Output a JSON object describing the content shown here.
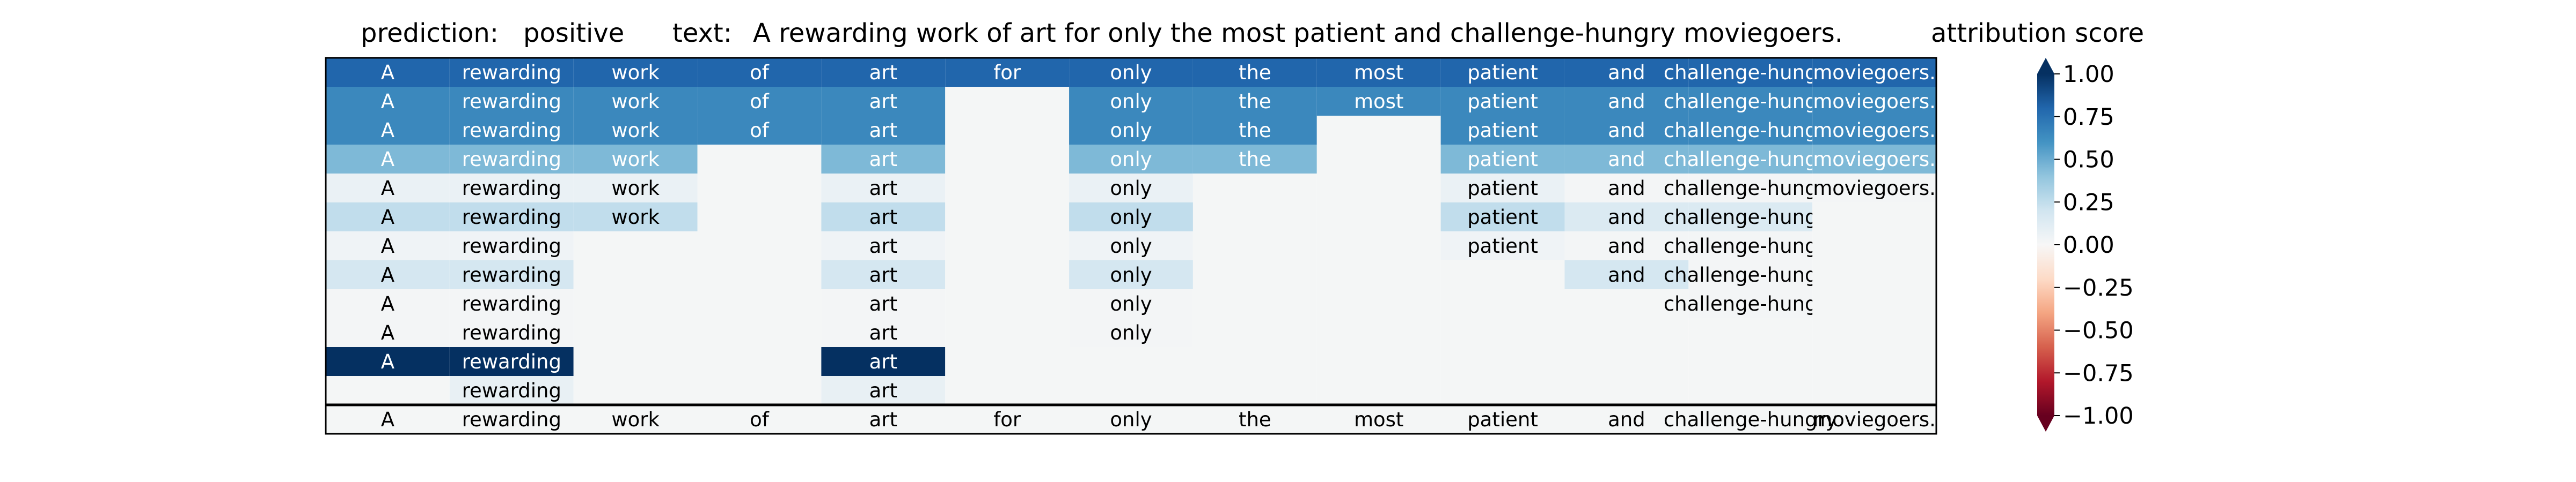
{
  "header": {
    "prediction_label": "prediction:",
    "prediction_value": "positive",
    "text_label": "text:",
    "text_value": "A rewarding work of art for only the most patient and challenge-hungry moviegoers.",
    "score_label": "attribution score"
  },
  "chart_data": {
    "type": "heatmap",
    "tokens": [
      "A",
      "rewarding",
      "work",
      "of",
      "art",
      "for",
      "only",
      "the",
      "most",
      "patient",
      "and",
      "challenge-hungry",
      "moviegoers."
    ],
    "rows": [
      [
        0.8,
        0.8,
        0.8,
        0.8,
        0.8,
        0.8,
        0.8,
        0.8,
        0.8,
        0.8,
        0.8,
        0.8,
        0.8
      ],
      [
        0.65,
        0.65,
        0.65,
        0.65,
        0.65,
        null,
        0.65,
        0.65,
        0.65,
        0.65,
        0.65,
        0.65,
        0.65
      ],
      [
        0.65,
        0.65,
        0.65,
        0.65,
        0.65,
        null,
        0.65,
        0.65,
        null,
        0.65,
        0.65,
        0.65,
        0.65
      ],
      [
        0.45,
        0.45,
        0.45,
        null,
        0.45,
        null,
        0.45,
        0.45,
        null,
        0.45,
        0.45,
        0.45,
        0.45
      ],
      [
        0.07,
        0.07,
        0.07,
        null,
        0.07,
        null,
        0.07,
        null,
        null,
        0.07,
        0.02,
        0.02,
        0.02
      ],
      [
        0.25,
        0.25,
        0.25,
        null,
        0.25,
        null,
        0.25,
        null,
        null,
        0.25,
        0.15,
        0.15,
        null
      ],
      [
        0.04,
        0.04,
        null,
        null,
        0.04,
        null,
        0.04,
        null,
        null,
        0.04,
        0.02,
        0.02,
        null
      ],
      [
        0.18,
        0.18,
        null,
        null,
        0.18,
        null,
        0.18,
        null,
        null,
        null,
        0.18,
        0.02,
        null
      ],
      [
        0.02,
        0.02,
        null,
        null,
        0.02,
        null,
        0.02,
        null,
        null,
        null,
        null,
        0.02,
        null
      ],
      [
        0.02,
        0.02,
        null,
        null,
        0.02,
        null,
        0.02,
        null,
        null,
        null,
        null,
        null,
        null
      ],
      [
        1.0,
        1.0,
        null,
        null,
        1.0,
        null,
        null,
        null,
        null,
        null,
        null,
        null,
        null
      ],
      [
        null,
        0.08,
        null,
        null,
        0.08,
        null,
        null,
        null,
        null,
        null,
        null,
        null,
        null
      ]
    ],
    "reference_row": [
      "A",
      "rewarding",
      "work",
      "of",
      "art",
      "for",
      "only",
      "the",
      "most",
      "patient",
      "and",
      "challenge-hungry",
      "moviegoers."
    ],
    "colorbar": {
      "label": "attribution score",
      "colormap": "RdBu",
      "vmin": -1.0,
      "vmax": 1.0,
      "ticks": [
        1.0,
        0.75,
        0.5,
        0.25,
        0.0,
        -0.25,
        -0.5,
        -0.75,
        -1.0
      ],
      "tick_labels": [
        "1.00",
        "0.75",
        "0.50",
        "0.25",
        "0.00",
        "−0.25",
        "−0.50",
        "−0.75",
        "−1.00"
      ],
      "extend": "both"
    },
    "empty_cell_color": "#f4f6f6"
  }
}
